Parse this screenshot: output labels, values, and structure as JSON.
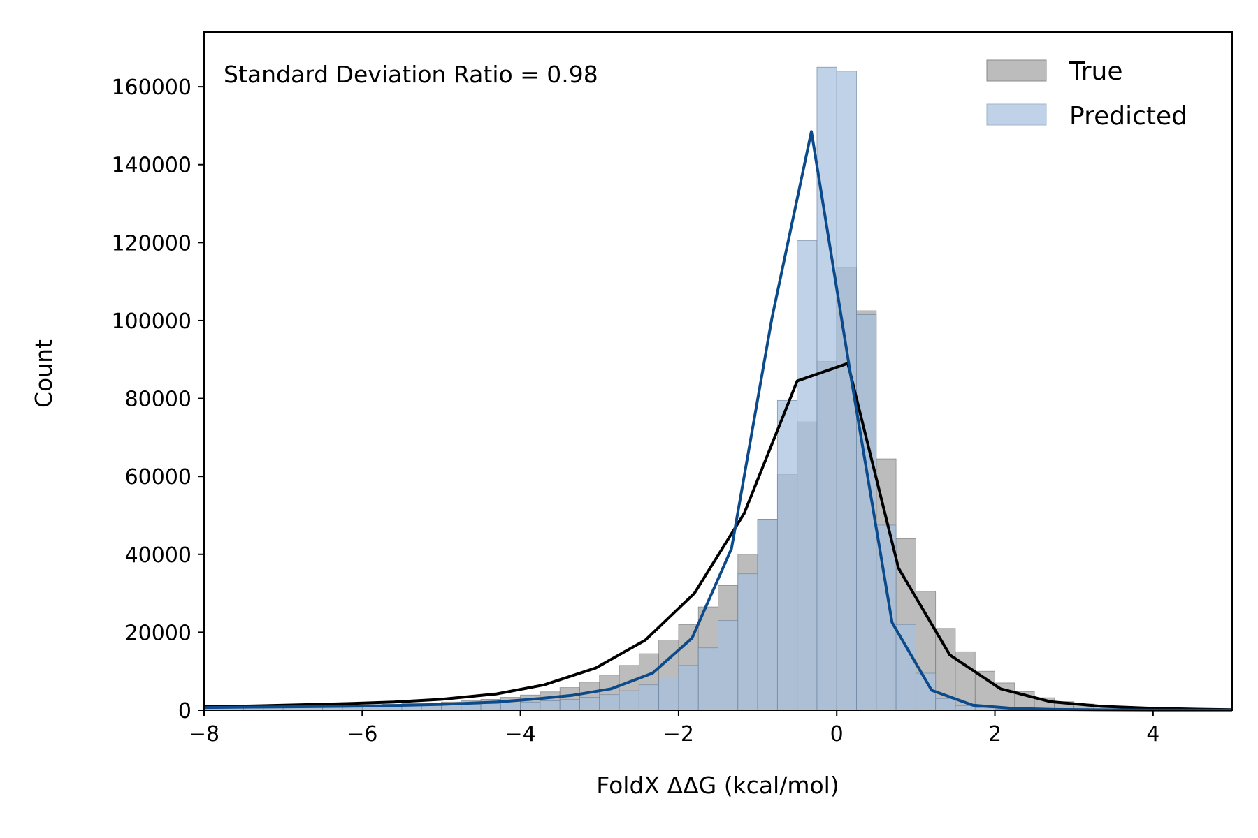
{
  "chart_data": {
    "type": "histogram",
    "xlabel": "FoldX ΔΔG (kcal/mol)",
    "ylabel": "Count",
    "xlim": [
      -8,
      5
    ],
    "ylim": [
      0,
      174000
    ],
    "annotation": "Standard Deviation Ratio = 0.98",
    "legend_position": "top-right",
    "grid": false,
    "x_ticks": [
      -8,
      -6,
      -4,
      -2,
      0,
      2,
      4
    ],
    "x_tick_labels": [
      "−8",
      "−6",
      "−4",
      "−2",
      "0",
      "2",
      "4"
    ],
    "y_ticks": [
      0,
      20000,
      40000,
      60000,
      80000,
      100000,
      120000,
      140000,
      160000
    ],
    "y_tick_labels": [
      "0",
      "20000",
      "40000",
      "60000",
      "80000",
      "100000",
      "120000",
      "140000",
      "160000"
    ],
    "bin_edges": [
      -8.0,
      -7.75,
      -7.5,
      -7.25,
      -7.0,
      -6.75,
      -6.5,
      -6.25,
      -6.0,
      -5.75,
      -5.5,
      -5.25,
      -5.0,
      -4.75,
      -4.5,
      -4.25,
      -4.0,
      -3.75,
      -3.5,
      -3.25,
      -3.0,
      -2.75,
      -2.5,
      -2.25,
      -2.0,
      -1.75,
      -1.5,
      -1.25,
      -1.0,
      -0.75,
      -0.5,
      -0.25,
      0.0,
      0.25,
      0.5,
      0.75,
      1.0,
      1.25,
      1.5,
      1.75,
      2.0,
      2.25,
      2.5,
      2.75,
      3.0,
      3.25,
      3.5,
      3.75,
      4.0,
      4.25,
      4.5,
      4.75,
      5.0
    ],
    "series": [
      {
        "name": "True",
        "kind": "histogram",
        "color": "#a9a9a9",
        "values": [
          800,
          850,
          900,
          950,
          1000,
          1050,
          1150,
          1250,
          1400,
          1550,
          1700,
          1900,
          2100,
          2400,
          2800,
          3300,
          3900,
          4700,
          5800,
          7200,
          9000,
          11500,
          14500,
          18000,
          22000,
          26500,
          32000,
          40000,
          49000,
          60500,
          74000,
          89500,
          113500,
          102500,
          64500,
          44000,
          30500,
          21000,
          15000,
          10000,
          7000,
          4800,
          3200,
          2200,
          1600,
          1100,
          800,
          600,
          450,
          350,
          300,
          250
        ]
      },
      {
        "name": "Predicted",
        "kind": "histogram",
        "color": "#a7c0de",
        "values": [
          600,
          650,
          700,
          750,
          800,
          850,
          900,
          950,
          1000,
          1100,
          1200,
          1300,
          1400,
          1550,
          1700,
          1900,
          2100,
          2400,
          2800,
          3300,
          4000,
          5000,
          6500,
          8500,
          11500,
          16000,
          23000,
          35000,
          49000,
          79500,
          120500,
          165000,
          164000,
          101500,
          47500,
          22000,
          9500,
          3000,
          1200,
          600,
          300,
          200,
          150,
          100,
          80,
          60,
          50,
          40,
          30,
          20,
          15,
          10
        ]
      },
      {
        "name": "",
        "kind": "line",
        "color": "#000000",
        "x": [
          -8.0,
          -7.4,
          -6.8,
          -6.2,
          -5.6,
          -5.0,
          -4.3,
          -3.7,
          -3.05,
          -2.42,
          -1.8,
          -1.17,
          -0.5,
          0.14,
          0.78,
          1.43,
          2.07,
          2.7,
          3.35,
          4.0,
          4.6,
          5.0
        ],
        "y": [
          900,
          1100,
          1400,
          1700,
          2100,
          2800,
          4200,
          6500,
          10800,
          18000,
          30000,
          50500,
          84500,
          89000,
          36500,
          14200,
          5500,
          2200,
          1000,
          500,
          250,
          150
        ]
      },
      {
        "name": "",
        "kind": "line",
        "color": "#0b4a8b",
        "x": [
          -8.0,
          -7.4,
          -6.8,
          -6.2,
          -5.6,
          -5.0,
          -4.3,
          -3.75,
          -3.35,
          -2.85,
          -2.33,
          -1.83,
          -1.33,
          -0.82,
          -0.32,
          0.18,
          0.7,
          1.2,
          1.72,
          2.22,
          2.75,
          3.3,
          4.0,
          5.0
        ],
        "y": [
          700,
          800,
          900,
          1000,
          1200,
          1500,
          2100,
          3000,
          3800,
          5500,
          9500,
          18500,
          41500,
          100500,
          148500,
          85500,
          22500,
          5100,
          1300,
          500,
          200,
          100,
          50,
          30
        ]
      }
    ]
  }
}
